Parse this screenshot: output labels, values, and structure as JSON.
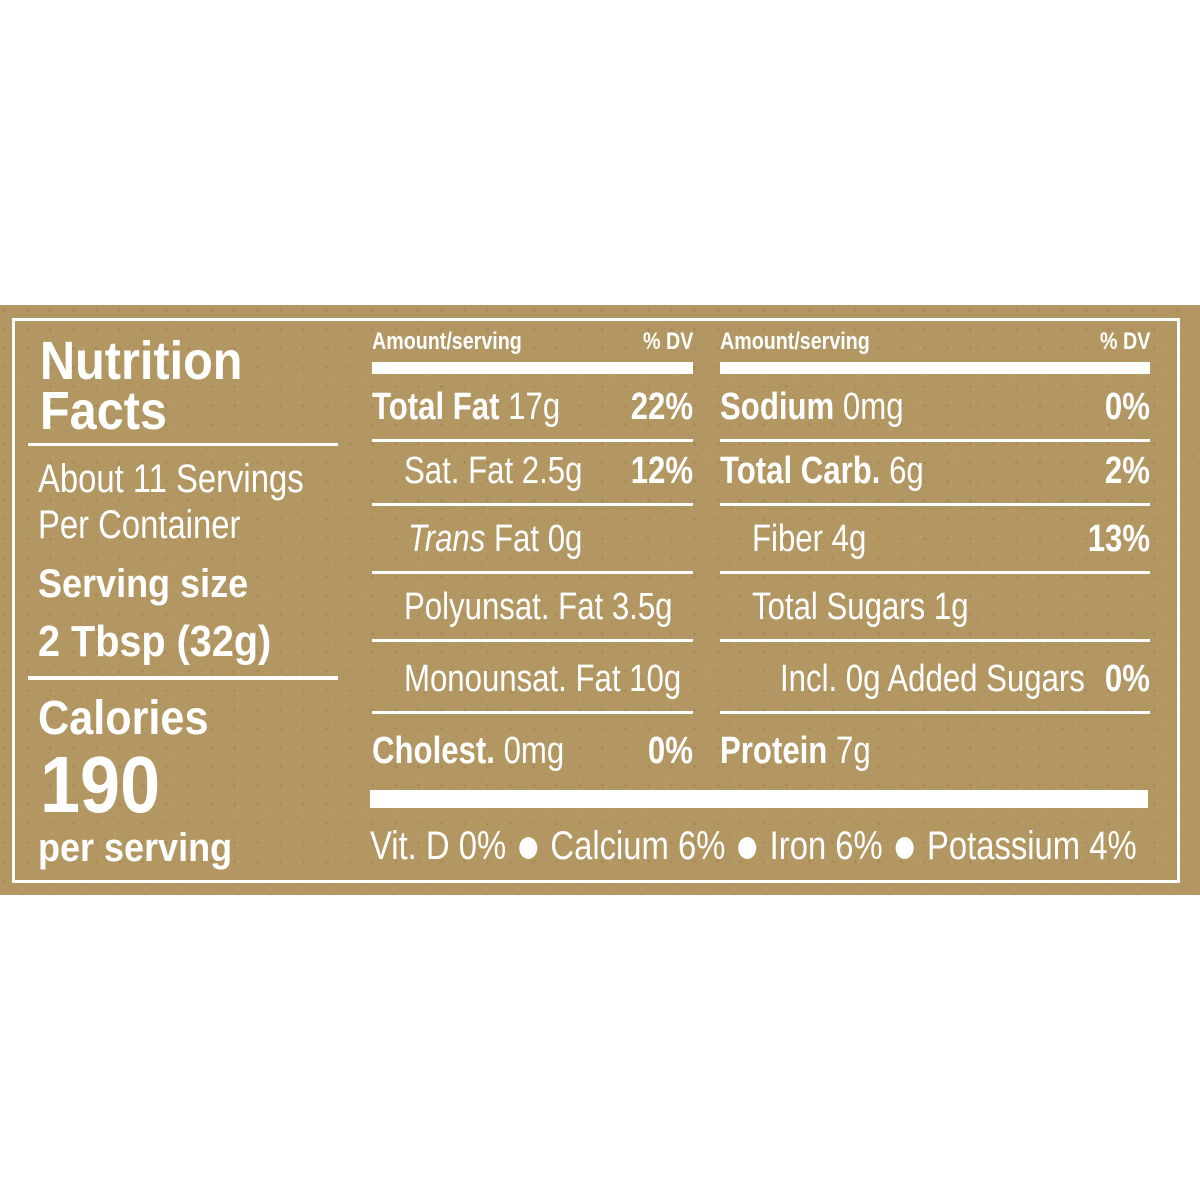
{
  "title": "Nutrition Facts",
  "servings": "About 11 Servings Per Container",
  "serving_size_label": "Serving size",
  "serving_size": "2 Tbsp (32g)",
  "calories_label": "Calories",
  "calories": "190",
  "calories_unit": "per serving",
  "columns": [
    {
      "header": "Amount/serving",
      "dv_header": "% DV",
      "rows": [
        {
          "bold": "Total Fat",
          "text": "17g",
          "dv": "22%"
        },
        {
          "text": "Sat. Fat 2.5g",
          "dv": "12%"
        },
        {
          "italic": "Trans",
          "text": "Fat 0g"
        },
        {
          "text": "Polyunsat. Fat 3.5g"
        },
        {
          "text": "Monounsat. Fat 10g"
        },
        {
          "bold": "Cholest.",
          "text": "0mg",
          "dv": "0%"
        }
      ]
    },
    {
      "header": "Amount/serving",
      "dv_header": "% DV",
      "rows": [
        {
          "bold": "Sodium",
          "text": "0mg",
          "dv": "0%"
        },
        {
          "bold": "Total Carb.",
          "text": "6g",
          "dv": "2%"
        },
        {
          "text": "Fiber 4g",
          "dv": "13%"
        },
        {
          "text": "Total Sugars 1g"
        },
        {
          "text": "Incl. 0g Added Sugars",
          "dv": "0%"
        },
        {
          "bold": "Protein",
          "text": "7g"
        }
      ]
    }
  ],
  "footer": [
    "Vit. D 0%",
    "Calcium 6%",
    "Iron 6%",
    "Potassium 4%"
  ]
}
